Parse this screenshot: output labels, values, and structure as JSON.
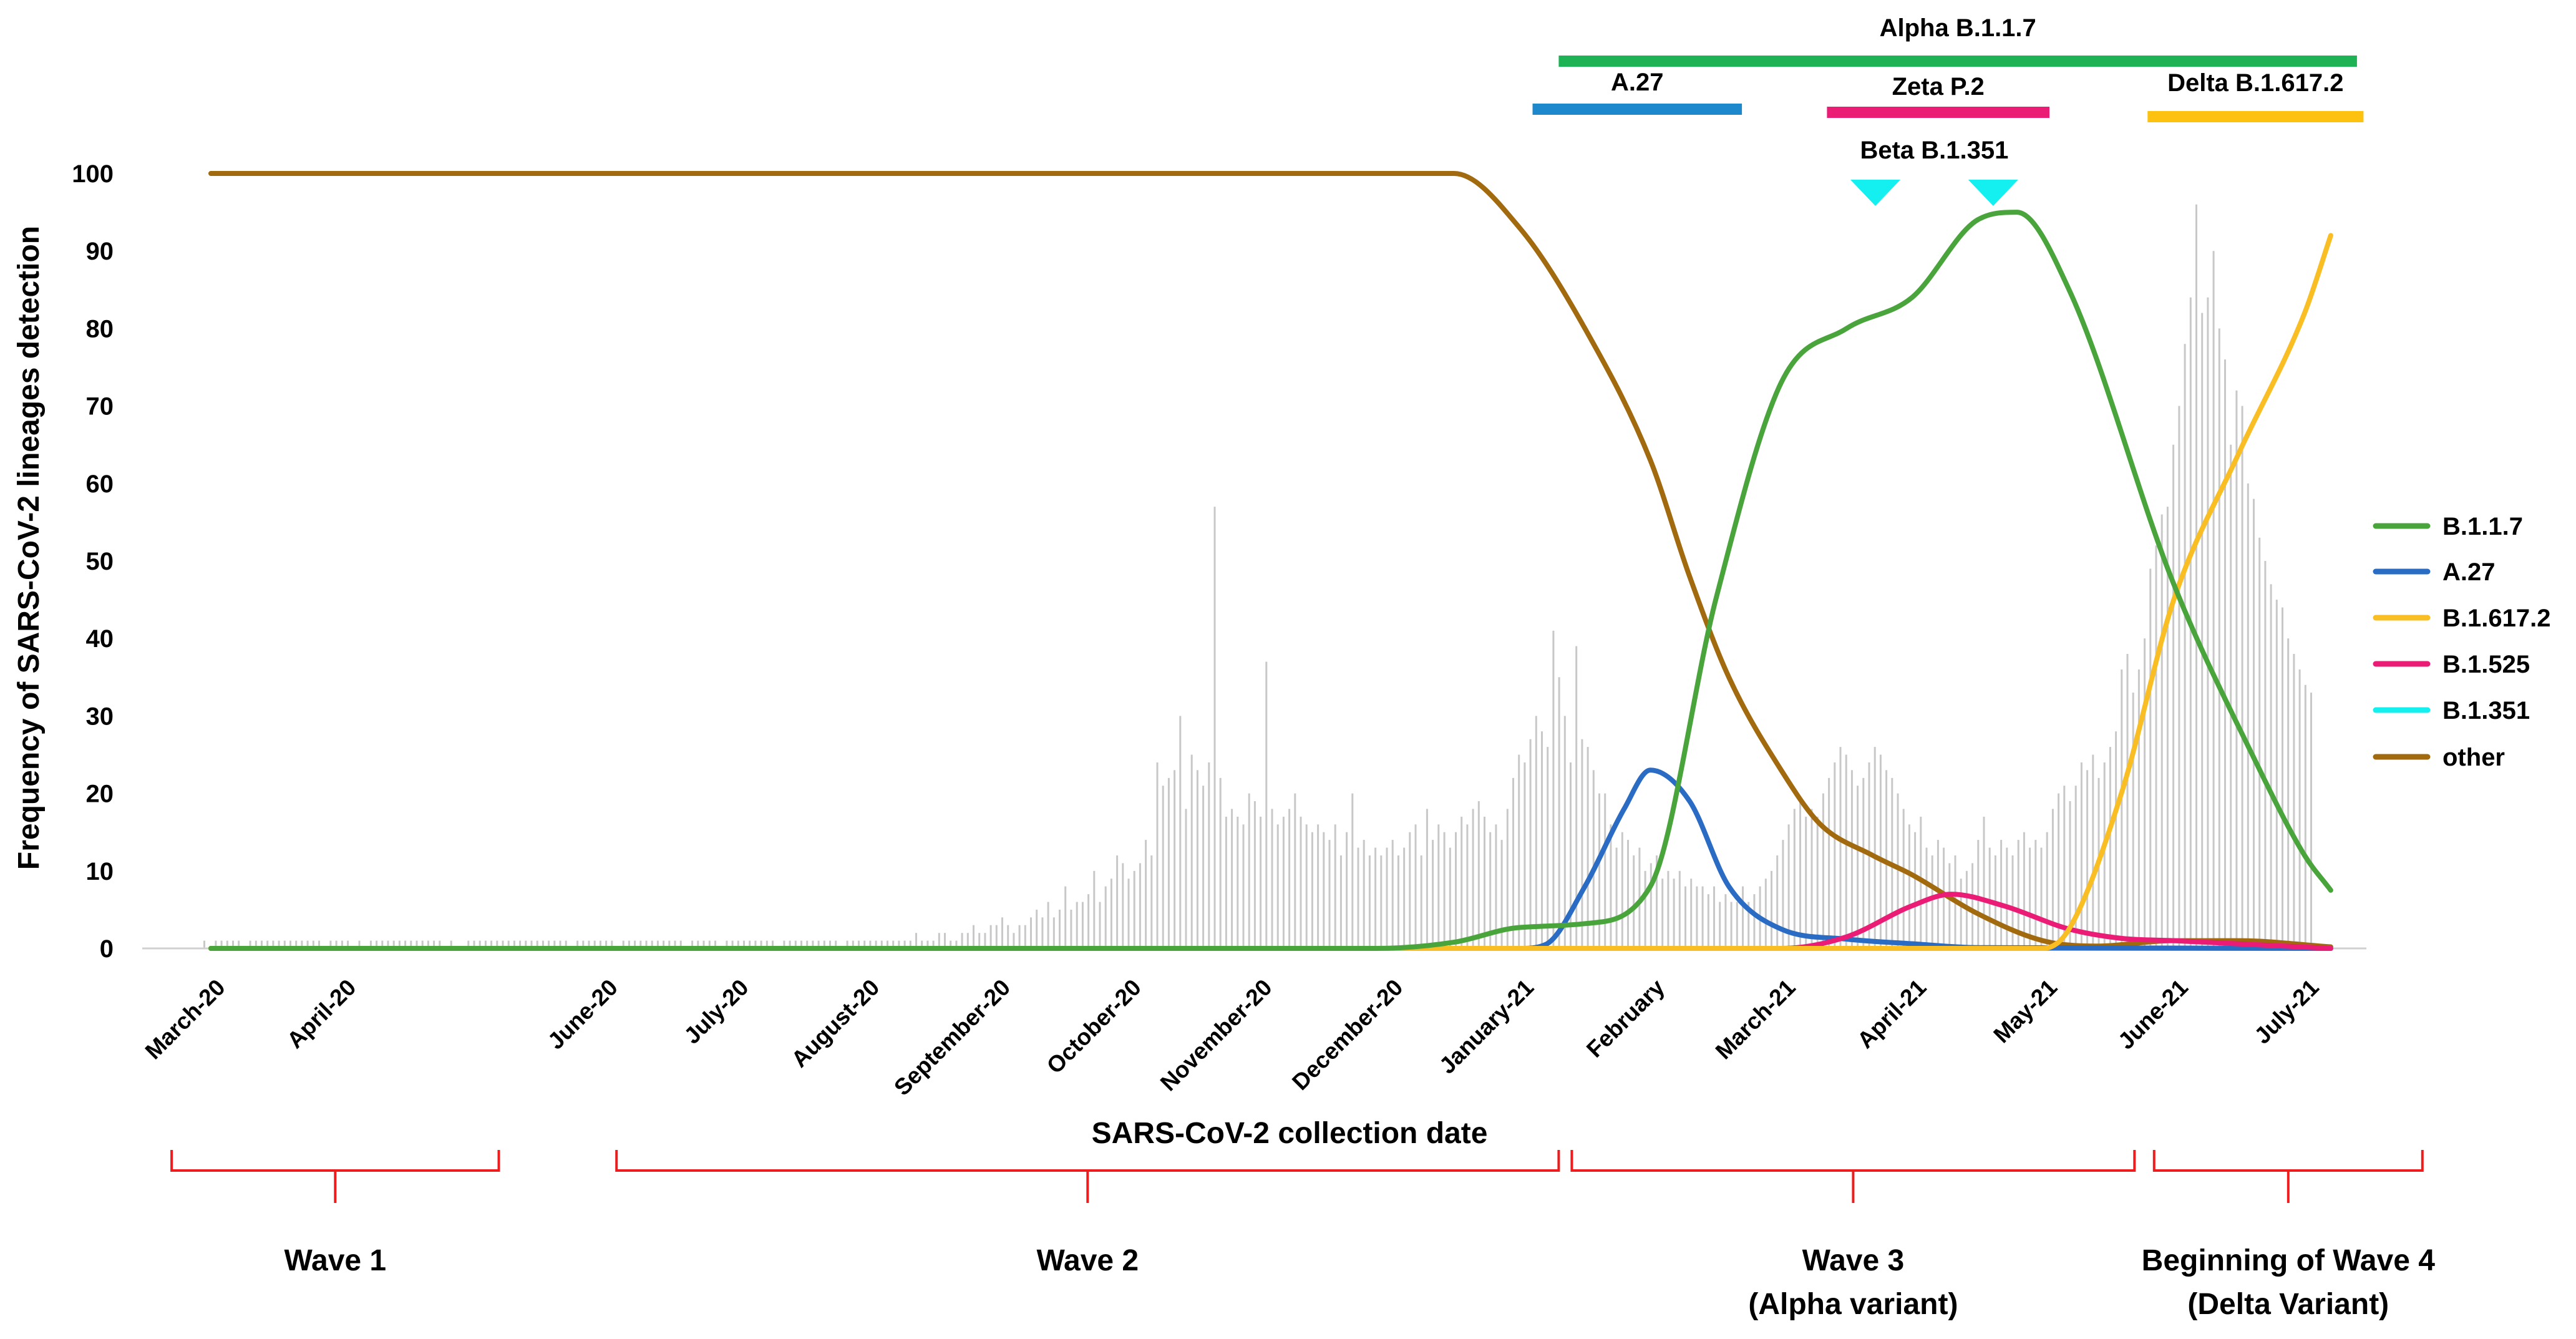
{
  "chart_data": {
    "type": "line",
    "title": "",
    "xlabel": "SARS-CoV-2 collection date",
    "ylabel": "Frequency of SARS-CoV-2 lineages detection",
    "ylim": [
      0,
      100
    ],
    "yticks": [
      "0",
      "10",
      "20",
      "30",
      "40",
      "50",
      "60",
      "70",
      "80",
      "90",
      "100"
    ],
    "categories": [
      "March-20",
      "April-20",
      "June-20",
      "July-20",
      "August-20",
      "September-20",
      "October-20",
      "November-20",
      "December-20",
      "January-21",
      "February",
      "March-21",
      "April-21",
      "May-21",
      "June-21",
      "July-21"
    ],
    "x_months": [
      0,
      1,
      3,
      4,
      5,
      6,
      7,
      8,
      9,
      10,
      11,
      12,
      13,
      14,
      15,
      16
    ],
    "xlim": [
      -0.45,
      16.7
    ],
    "series": [
      {
        "name": "B.1.1.7",
        "color": "#49a53b",
        "points": [
          [
            0,
            0
          ],
          [
            7,
            0
          ],
          [
            8.9,
            0
          ],
          [
            9.5,
            0.8
          ],
          [
            10.0,
            2.7
          ],
          [
            10.5,
            3.2
          ],
          [
            11.0,
            8
          ],
          [
            11.5,
            45
          ],
          [
            12.0,
            73
          ],
          [
            12.5,
            80
          ],
          [
            13.0,
            84
          ],
          [
            13.5,
            94
          ],
          [
            13.8,
            95
          ],
          [
            14.2,
            85
          ],
          [
            15.0,
            47
          ],
          [
            15.6,
            25
          ],
          [
            16.0,
            12
          ],
          [
            16.2,
            7.5
          ]
        ]
      },
      {
        "name": "A.27",
        "color": "#2a6bc4",
        "points": [
          [
            0,
            0
          ],
          [
            10.0,
            0
          ],
          [
            10.2,
            0.5
          ],
          [
            10.5,
            8
          ],
          [
            10.8,
            18
          ],
          [
            11.0,
            23
          ],
          [
            11.3,
            19
          ],
          [
            11.6,
            8
          ],
          [
            12.0,
            2.5
          ],
          [
            12.5,
            1.2
          ],
          [
            13.0,
            0.6
          ],
          [
            13.5,
            0.1
          ],
          [
            16.2,
            0
          ]
        ]
      },
      {
        "name": "B.1.617.2",
        "color": "#f9be24",
        "points": [
          [
            0,
            0
          ],
          [
            14.0,
            0
          ],
          [
            14.2,
            2.5
          ],
          [
            14.6,
            20
          ],
          [
            15.0,
            45
          ],
          [
            15.5,
            64
          ],
          [
            16.0,
            82
          ],
          [
            16.2,
            92
          ]
        ]
      },
      {
        "name": "B.1.525",
        "color": "#ea1c76",
        "points": [
          [
            0,
            0
          ],
          [
            12.0,
            0
          ],
          [
            12.5,
            1.5
          ],
          [
            13.0,
            5.5
          ],
          [
            13.3,
            7
          ],
          [
            13.7,
            5.5
          ],
          [
            14.2,
            2.5
          ],
          [
            14.6,
            1.3
          ],
          [
            15.0,
            1.0
          ],
          [
            16.2,
            0
          ]
        ]
      },
      {
        "name": "B.1.351",
        "color": "#14f0ef",
        "points": [
          [
            0,
            0
          ],
          [
            16.2,
            0
          ]
        ]
      },
      {
        "name": "other",
        "color": "#a26a0f",
        "points": [
          [
            0,
            100
          ],
          [
            8.9,
            100
          ],
          [
            9.5,
            100
          ],
          [
            10.0,
            93
          ],
          [
            10.5,
            80
          ],
          [
            11.0,
            63
          ],
          [
            11.3,
            48
          ],
          [
            11.6,
            35
          ],
          [
            12.0,
            23
          ],
          [
            12.3,
            16
          ],
          [
            12.7,
            12
          ],
          [
            13.0,
            9.5
          ],
          [
            13.5,
            4.5
          ],
          [
            14.0,
            1.0
          ],
          [
            14.4,
            0.3
          ],
          [
            15.0,
            1.0
          ],
          [
            15.5,
            1.0
          ],
          [
            16.2,
            0.2
          ]
        ]
      }
    ],
    "daily_counts": [
      1,
      0,
      1,
      1,
      1,
      1,
      1,
      0,
      1,
      1,
      1,
      1,
      1,
      1,
      1,
      1,
      1,
      1,
      1,
      1,
      1,
      0,
      1,
      1,
      1,
      1,
      0,
      1,
      0,
      1,
      1,
      1,
      1,
      1,
      1,
      1,
      1,
      1,
      1,
      1,
      1,
      1,
      0,
      1,
      0,
      0,
      1,
      1,
      1,
      1,
      1,
      1,
      1,
      1,
      1,
      1,
      1,
      1,
      1,
      1,
      1,
      1,
      1,
      1,
      0,
      1,
      1,
      1,
      1,
      1,
      1,
      1,
      0,
      1,
      1,
      1,
      1,
      1,
      1,
      1,
      1,
      1,
      1,
      1,
      0,
      1,
      1,
      1,
      1,
      1,
      0,
      1,
      1,
      1,
      1,
      1,
      1,
      1,
      1,
      1,
      0,
      1,
      1,
      1,
      1,
      1,
      1,
      1,
      1,
      1,
      1,
      0,
      1,
      1,
      1,
      1,
      1,
      1,
      1,
      1,
      1,
      1,
      1,
      1,
      2,
      1,
      1,
      1,
      2,
      2,
      1,
      1,
      2,
      2,
      3,
      2,
      2,
      3,
      3,
      4,
      3,
      2,
      3,
      3,
      4,
      5,
      4,
      6,
      4,
      5,
      8,
      5,
      6,
      6,
      7,
      10,
      6,
      8,
      9,
      12,
      11,
      9,
      10,
      11,
      14,
      12,
      24,
      21,
      22,
      23,
      30,
      18,
      25,
      23,
      21,
      24,
      57,
      22,
      17,
      18,
      17,
      16,
      20,
      19,
      17,
      37,
      18,
      16,
      17,
      18,
      20,
      17,
      16,
      15,
      16,
      15,
      14,
      16,
      12,
      15,
      20,
      13,
      14,
      12,
      13,
      12,
      13,
      14,
      12,
      13,
      15,
      16,
      12,
      18,
      14,
      16,
      15,
      13,
      15,
      17,
      16,
      18,
      19,
      17,
      15,
      16,
      14,
      18,
      22,
      25,
      24,
      27,
      30,
      28,
      26,
      41,
      35,
      30,
      24,
      39,
      27,
      26,
      23,
      20,
      20,
      16,
      13,
      15,
      14,
      12,
      13,
      10,
      11,
      12,
      9,
      10,
      9,
      10,
      8,
      9,
      8,
      8,
      7,
      8,
      6,
      7,
      6,
      6,
      8,
      6,
      7,
      8,
      9,
      10,
      12,
      14,
      16,
      18,
      19,
      17,
      18,
      17,
      20,
      22,
      24,
      26,
      25,
      23,
      21,
      22,
      24,
      26,
      25,
      23,
      22,
      20,
      18,
      16,
      15,
      17,
      13,
      12,
      14,
      13,
      11,
      12,
      9,
      10,
      11,
      14,
      17,
      13,
      12,
      14,
      13,
      12,
      14,
      15,
      13,
      14,
      13,
      15,
      18,
      20,
      21,
      19,
      21,
      24,
      23,
      25,
      22,
      24,
      26,
      28,
      36,
      38,
      33,
      36,
      40,
      49,
      52,
      56,
      57,
      65,
      70,
      78,
      84,
      96,
      82,
      84,
      90,
      80,
      76,
      65,
      72,
      70,
      60,
      58,
      53,
      50,
      47,
      45,
      44,
      40,
      38,
      36,
      34,
      33
    ],
    "lineage_bars": [
      {
        "label": "Alpha B.1.1.7",
        "color": "#1db254",
        "start": 10.3,
        "end": 16.4
      },
      {
        "label": "A.27",
        "color": "#1e88cc",
        "start": 10.1,
        "end": 11.7
      },
      {
        "label": "Zeta P.2",
        "color": "#ea1c76",
        "start": 12.35,
        "end": 14.05
      },
      {
        "label": "Delta B.1.617.2",
        "color": "#fdc110",
        "start": 14.8,
        "end": 16.45
      }
    ],
    "beta_marker": {
      "label": "Beta B.1.351",
      "color": "#14f0ef",
      "positions": [
        12.72,
        13.62
      ]
    },
    "waves": [
      {
        "lines": [
          "Wave 1"
        ],
        "start": -0.3,
        "end": 2.2
      },
      {
        "lines": [
          "Wave 2"
        ],
        "start": 3.1,
        "end": 10.3
      },
      {
        "lines": [
          "Wave 3",
          "(Alpha variant)"
        ],
        "start": 10.4,
        "end": 14.7
      },
      {
        "lines": [
          "Beginning of Wave 4",
          "(Delta Variant)"
        ],
        "start": 14.85,
        "end": 16.9
      }
    ],
    "legend": [
      "B.1.1.7",
      "A.27",
      "B.1.617.2",
      "B.1.525",
      "B.1.351",
      "other"
    ],
    "legend_position": "right",
    "grid": false
  }
}
